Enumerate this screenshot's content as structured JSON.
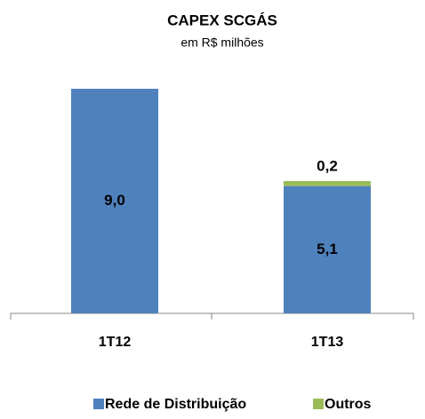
{
  "chart_data": {
    "type": "stacked_bar",
    "title": "CAPEX SCGÁS",
    "subtitle": "em R$ milhões",
    "categories": [
      "1T12",
      "1T13"
    ],
    "series": [
      {
        "name": "Rede de Distribuição",
        "color": "#4f81bd",
        "values": [
          9.0,
          5.1
        ],
        "value_labels": [
          "9,0",
          "5,1"
        ]
      },
      {
        "name": "Outros",
        "color": "#9bbb59",
        "values": [
          null,
          0.2
        ],
        "value_labels": [
          null,
          "0,2"
        ]
      }
    ],
    "ylim": [
      0,
      9
    ]
  }
}
